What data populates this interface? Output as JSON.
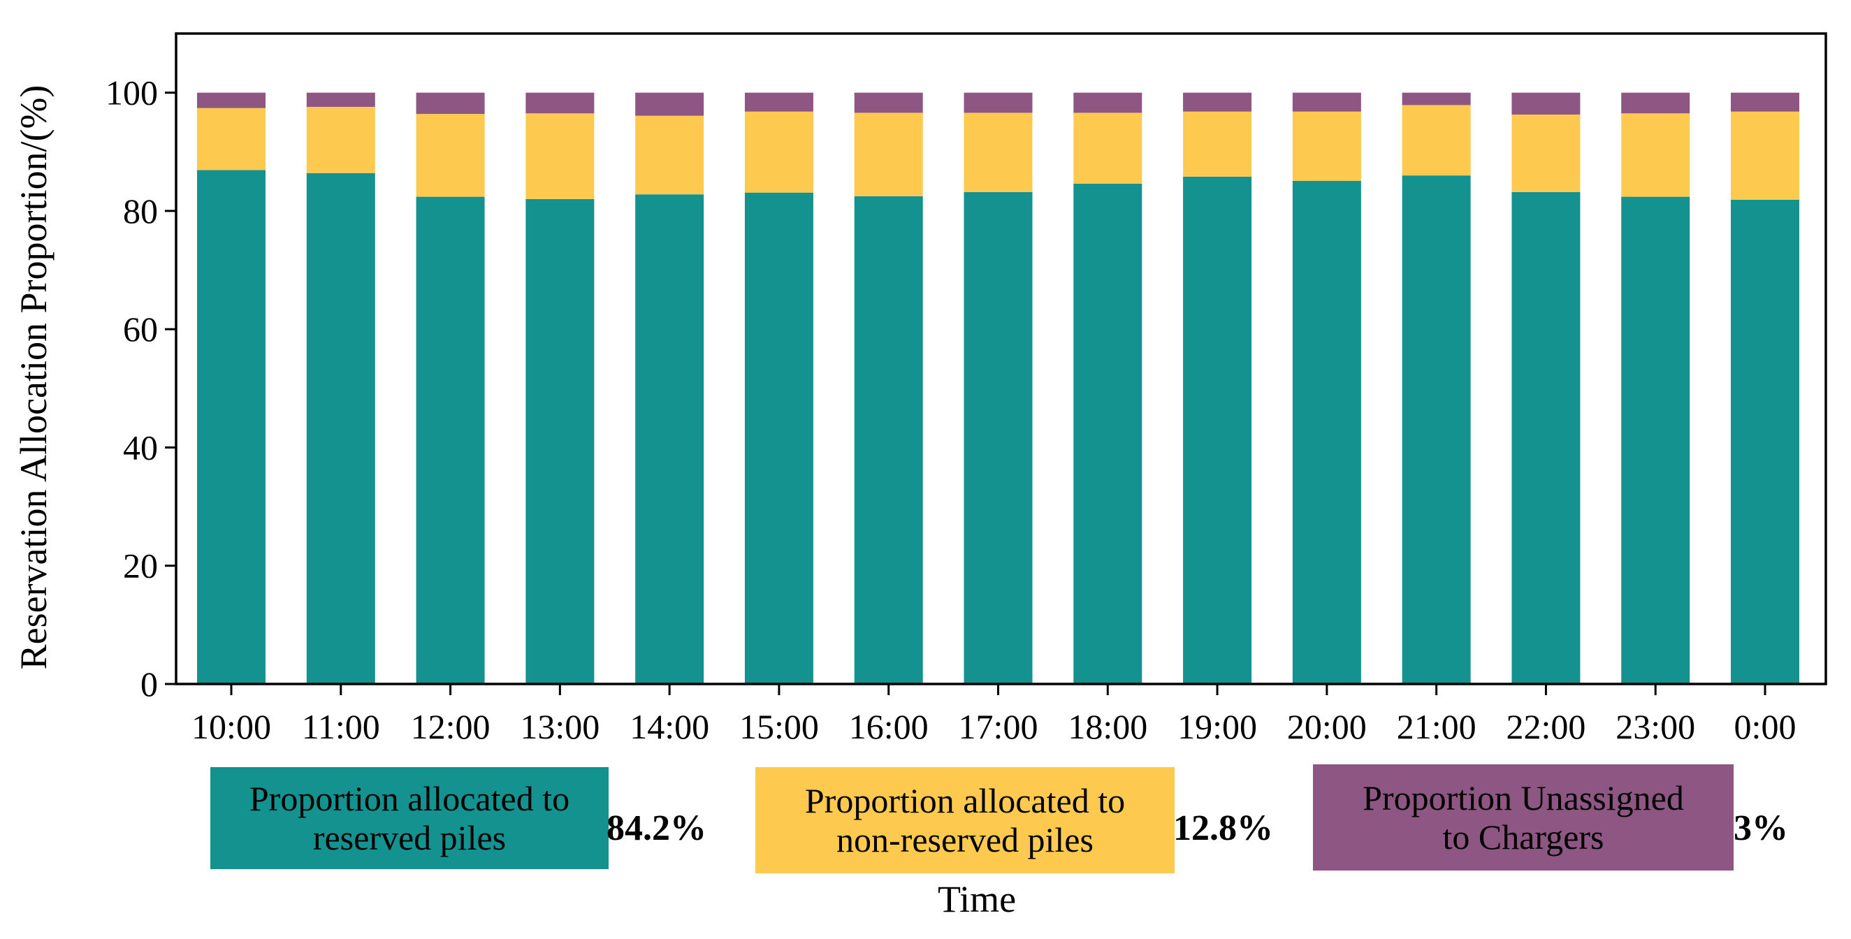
{
  "chart_data": {
    "type": "bar",
    "stacked": true,
    "title": "",
    "xlabel": "Time",
    "ylabel": "Reservation Allocation Proportion/(%)",
    "ylim": [
      0,
      110
    ],
    "yticks": [
      0,
      20,
      40,
      60,
      80,
      100
    ],
    "categories": [
      "10:00",
      "11:00",
      "12:00",
      "13:00",
      "14:00",
      "15:00",
      "16:00",
      "17:00",
      "18:00",
      "19:00",
      "20:00",
      "21:00",
      "22:00",
      "23:00",
      "0:00"
    ],
    "series": [
      {
        "name": "Proportion allocated to reserved piles",
        "color": "#14928f",
        "values": [
          86.9,
          86.4,
          82.4,
          82.0,
          82.8,
          83.1,
          82.5,
          83.2,
          84.6,
          85.8,
          85.1,
          86.0,
          83.2,
          82.4,
          81.9
        ]
      },
      {
        "name": "Proportion allocated to non-reserved piles",
        "color": "#fdca4f",
        "values": [
          10.5,
          11.2,
          14.0,
          14.5,
          13.3,
          13.7,
          14.1,
          13.4,
          12.0,
          11.0,
          11.7,
          11.9,
          13.1,
          14.1,
          14.9
        ]
      },
      {
        "name": "Proportion Unassigned to Chargers",
        "color": "#8e5783",
        "values": [
          2.6,
          2.4,
          3.6,
          3.5,
          3.9,
          3.2,
          3.4,
          3.4,
          3.4,
          3.2,
          3.2,
          2.1,
          3.7,
          3.5,
          3.2
        ]
      }
    ],
    "legend": [
      {
        "line1": "Proportion allocated to",
        "line2": "reserved piles",
        "percent": "84.2%",
        "color": "#14928f"
      },
      {
        "line1": "Proportion allocated to",
        "line2": "non-reserved piles",
        "percent": "12.8%",
        "color": "#fdca4f"
      },
      {
        "line1": "Proportion Unassigned",
        "line2": "to Chargers",
        "percent": "3%",
        "color": "#8e5783"
      }
    ]
  }
}
